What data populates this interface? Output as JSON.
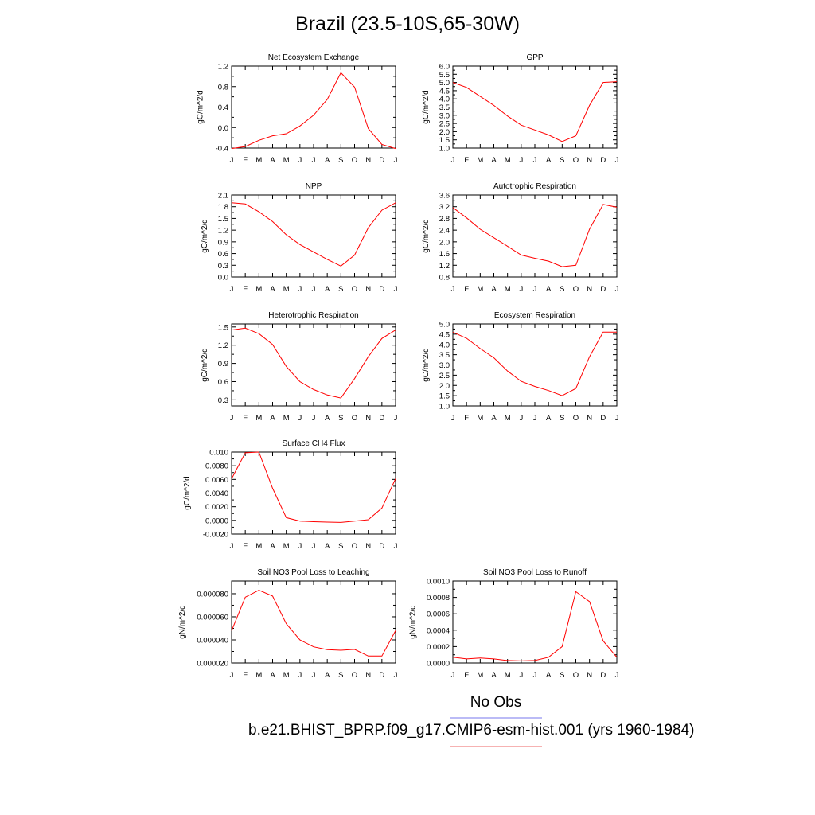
{
  "figure": {
    "title": "Brazil (23.5-10S,65-30W)",
    "legend": [
      {
        "label": "No Obs",
        "color": "#7777ee"
      },
      {
        "label": "b.e21.BHIST_BPRP.f09_g17.CMIP6-esm-hist.001 (yrs 1960-1984)",
        "color": "#ee6666"
      }
    ]
  },
  "chart_data": [
    {
      "type": "line",
      "title": "Net Ecosystem Exchange",
      "ylabel": "gC/m^2/d",
      "categories": [
        "J",
        "F",
        "M",
        "A",
        "M",
        "J",
        "J",
        "A",
        "S",
        "O",
        "N",
        "D",
        "J"
      ],
      "yticks": [
        "-0.4",
        "0.0",
        "0.4",
        "0.8",
        "1.2"
      ],
      "ylim": [
        -0.4,
        1.2
      ],
      "color": "#ff0000",
      "values": [
        -0.41,
        -0.37,
        -0.25,
        -0.16,
        -0.12,
        0.03,
        0.24,
        0.55,
        1.07,
        0.79,
        -0.02,
        -0.33,
        -0.41
      ]
    },
    {
      "type": "line",
      "title": "GPP",
      "ylabel": "gC/m^2/d",
      "categories": [
        "J",
        "F",
        "M",
        "A",
        "M",
        "J",
        "J",
        "A",
        "S",
        "O",
        "N",
        "D",
        "J"
      ],
      "yticks": [
        "1.0",
        "1.5",
        "2.0",
        "2.5",
        "3.0",
        "3.5",
        "4.0",
        "4.5",
        "5.0",
        "5.5",
        "6.0"
      ],
      "ylim": [
        1.0,
        6.0
      ],
      "color": "#ff0000",
      "values": [
        5.0,
        4.7,
        4.15,
        3.6,
        2.95,
        2.4,
        2.1,
        1.8,
        1.4,
        1.75,
        3.6,
        5.0,
        5.05
      ]
    },
    {
      "type": "line",
      "title": "NPP",
      "ylabel": "gC/m^2/d",
      "categories": [
        "J",
        "F",
        "M",
        "A",
        "M",
        "J",
        "J",
        "A",
        "S",
        "O",
        "N",
        "D",
        "J"
      ],
      "yticks": [
        "0.0",
        "0.3",
        "0.6",
        "0.9",
        "1.2",
        "1.5",
        "1.8",
        "2.1"
      ],
      "ylim": [
        0.0,
        2.1
      ],
      "color": "#ff0000",
      "values": [
        1.9,
        1.87,
        1.67,
        1.42,
        1.08,
        0.83,
        0.64,
        0.45,
        0.28,
        0.56,
        1.26,
        1.71,
        1.9
      ]
    },
    {
      "type": "line",
      "title": "Autotrophic Respiration",
      "ylabel": "gC/m^2/d",
      "categories": [
        "J",
        "F",
        "M",
        "A",
        "M",
        "J",
        "J",
        "A",
        "S",
        "O",
        "N",
        "D",
        "J"
      ],
      "yticks": [
        "0.8",
        "1.2",
        "1.6",
        "2.0",
        "2.4",
        "2.8",
        "3.2",
        "3.6"
      ],
      "ylim": [
        0.8,
        3.6
      ],
      "color": "#ff0000",
      "values": [
        3.17,
        2.82,
        2.43,
        2.14,
        1.85,
        1.55,
        1.44,
        1.34,
        1.15,
        1.2,
        2.43,
        3.28,
        3.18
      ]
    },
    {
      "type": "line",
      "title": "Heterotrophic Respiration",
      "ylabel": "gC/m^2/d",
      "categories": [
        "J",
        "F",
        "M",
        "A",
        "M",
        "J",
        "J",
        "A",
        "S",
        "O",
        "N",
        "D",
        "J"
      ],
      "yticks": [
        "0.3",
        "0.6",
        "0.9",
        "1.2",
        "1.5"
      ],
      "ylim": [
        0.2,
        1.55
      ],
      "color": "#ff0000",
      "values": [
        1.45,
        1.48,
        1.39,
        1.21,
        0.85,
        0.6,
        0.47,
        0.38,
        0.33,
        0.65,
        1.01,
        1.31,
        1.45
      ]
    },
    {
      "type": "line",
      "title": "Ecosystem Respiration",
      "ylabel": "gC/m^2/d",
      "categories": [
        "J",
        "F",
        "M",
        "A",
        "M",
        "J",
        "J",
        "A",
        "S",
        "O",
        "N",
        "D",
        "J"
      ],
      "yticks": [
        "1.0",
        "1.5",
        "2.0",
        "2.5",
        "3.0",
        "3.5",
        "4.0",
        "4.5",
        "5.0"
      ],
      "ylim": [
        1.0,
        5.0
      ],
      "color": "#ff0000",
      "values": [
        4.6,
        4.3,
        3.8,
        3.35,
        2.7,
        2.2,
        1.95,
        1.75,
        1.5,
        1.85,
        3.4,
        4.6,
        4.6
      ]
    },
    {
      "type": "line",
      "title": "Surface CH4 Flux",
      "ylabel": "gC/m^2/d",
      "categories": [
        "J",
        "F",
        "M",
        "A",
        "M",
        "J",
        "J",
        "A",
        "S",
        "O",
        "N",
        "D",
        "J"
      ],
      "yticks": [
        "-0.0020",
        "0.0000",
        "0.0020",
        "0.0040",
        "0.0060",
        "0.0080",
        "0.010"
      ],
      "ylim": [
        -0.002,
        0.01
      ],
      "color": "#ff0000",
      "values": [
        0.0061,
        0.0099,
        0.01,
        0.0047,
        0.0004,
        -0.0001,
        -0.0002,
        -0.00025,
        -0.0003,
        -0.0001,
        0.0001,
        0.0018,
        0.0061
      ]
    },
    {
      "type": "line",
      "title": "Soil NO3 Pool Loss to Leaching",
      "ylabel": "gN/m^2/d",
      "categories": [
        "J",
        "F",
        "M",
        "A",
        "M",
        "J",
        "J",
        "A",
        "S",
        "O",
        "N",
        "D",
        "J"
      ],
      "yticks": [
        "0.000020",
        "0.000040",
        "0.000060",
        "0.000080"
      ],
      "ylim": [
        2e-05,
        9.1e-05
      ],
      "color": "#ff0000",
      "values": [
        4.8e-05,
        7.7e-05,
        8.3e-05,
        7.8e-05,
        5.4e-05,
        4e-05,
        3.4e-05,
        3.15e-05,
        3.1e-05,
        3.18e-05,
        2.6e-05,
        2.6e-05,
        4.8e-05
      ]
    },
    {
      "type": "line",
      "title": "Soil NO3 Pool Loss to Runoff",
      "ylabel": "gN/m^2/d",
      "categories": [
        "J",
        "F",
        "M",
        "A",
        "M",
        "J",
        "J",
        "A",
        "S",
        "O",
        "N",
        "D",
        "J"
      ],
      "yticks": [
        "0.0000",
        "0.0002",
        "0.0004",
        "0.0006",
        "0.0008",
        "0.0010"
      ],
      "ylim": [
        0.0,
        0.001
      ],
      "color": "#ff0000",
      "values": [
        7e-05,
        5e-05,
        6e-05,
        5e-05,
        3e-05,
        2.5e-05,
        3e-05,
        7e-05,
        0.0002,
        0.00087,
        0.00075,
        0.00027,
        7e-05
      ]
    }
  ]
}
